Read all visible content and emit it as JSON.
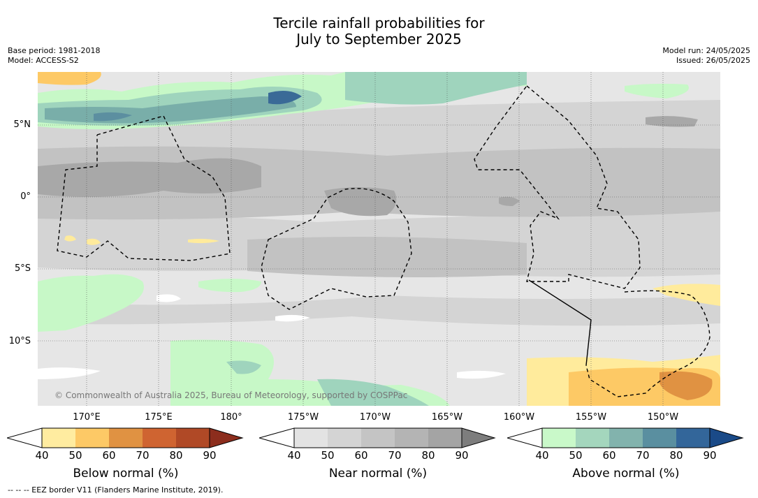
{
  "title": {
    "line1": "Tercile rainfall probabilities for",
    "line2": "July to September 2025"
  },
  "meta": {
    "base_period": "Base period: 1981-2018",
    "model": "Model: ACCESS-S2",
    "model_run": "Model run: 24/05/2025",
    "issued": "Issued: 26/05/2025"
  },
  "map": {
    "lat_labels": [
      "5°N",
      "0°",
      "5°S",
      "10°S"
    ],
    "lon_labels": [
      "170°E",
      "175°E",
      "180°",
      "175°W",
      "170°W",
      "165°W",
      "160°W",
      "155°W",
      "150°W"
    ],
    "copyright": "© Commonwealth of Australia 2025, Bureau of Meteorology, supported by COSPPac",
    "colors": {
      "background": "#e6e6e6",
      "near_50": "#d4d4d4",
      "near_60": "#c2c2c2",
      "near_70": "#a8a8a8",
      "below_40": "#ffeb9c",
      "below_50": "#fdc965",
      "below_60": "#e09242",
      "above_40": "#c7f8c7",
      "above_50": "#9fd4bd",
      "above_60": "#79aea9",
      "above_70": "#5c8fa0",
      "above_80": "#3a6a97",
      "eez_border": "#000000"
    }
  },
  "colorbars": {
    "ticks": [
      "40",
      "50",
      "60",
      "70",
      "80",
      "90"
    ],
    "below": {
      "title": "Below normal (%)",
      "colors": [
        "#ffffff",
        "#ffeca0",
        "#fdc966",
        "#e09242",
        "#cf6431",
        "#b04926",
        "#8c2d1d"
      ]
    },
    "near": {
      "title": "Near normal (%)",
      "colors": [
        "#ffffff",
        "#e3e3e3",
        "#d4d4d4",
        "#c4c4c4",
        "#b4b4b4",
        "#a4a4a4",
        "#7d7d7d"
      ]
    },
    "above": {
      "title": "Above normal (%)",
      "colors": [
        "#ffffff",
        "#c9f9c9",
        "#a4d6bd",
        "#82b3ad",
        "#5a8fa0",
        "#33669a",
        "#1a4a88"
      ]
    }
  },
  "footer": "--  --  -- EEZ border V11 (Flanders Marine Institute, 2019)."
}
